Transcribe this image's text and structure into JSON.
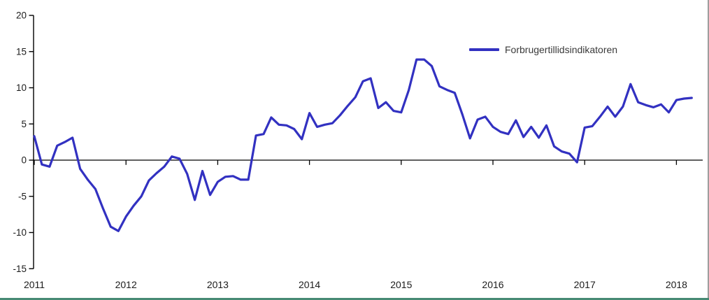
{
  "chart_data": {
    "type": "line",
    "title": "",
    "legend_position": "top-right",
    "grid": false,
    "x_tick_labels": [
      "2011",
      "2012",
      "2013",
      "2014",
      "2015",
      "2016",
      "2017",
      "2018"
    ],
    "y_ticks": [
      20,
      15,
      10,
      5,
      0,
      -5,
      -10,
      -15
    ],
    "ylim": [
      -15,
      20
    ],
    "x_unit": "month",
    "x_range": "2011-01 to 2018-03",
    "series": [
      {
        "name": "Forbrugertillidsindikatoren",
        "color": "#3231c1",
        "years": [
          {
            "year": "2011",
            "values": [
              3.3,
              -0.6,
              -0.9,
              2.0,
              2.5,
              3.1,
              -1.2,
              -2.7,
              -4.0,
              -6.7,
              -9.2,
              -9.8
            ]
          },
          {
            "year": "2012",
            "values": [
              -7.8,
              -6.3,
              -5.0,
              -2.8,
              -1.8,
              -0.9,
              0.5,
              0.2,
              -1.9,
              -5.5,
              -1.5,
              -4.8
            ]
          },
          {
            "year": "2013",
            "values": [
              -3.0,
              -2.3,
              -2.2,
              -2.7,
              -2.7,
              3.4,
              3.6,
              5.9,
              4.9,
              4.8,
              4.3,
              2.9
            ]
          },
          {
            "year": "2014",
            "values": [
              6.5,
              4.6,
              4.9,
              5.1,
              6.2,
              7.5,
              8.7,
              10.9,
              11.3,
              7.2,
              8.0,
              6.8
            ]
          },
          {
            "year": "2015",
            "values": [
              6.6,
              9.7,
              13.9,
              13.9,
              13.0,
              10.2,
              9.7,
              9.3,
              6.3,
              3.0,
              5.6,
              6.0
            ]
          },
          {
            "year": "2016",
            "values": [
              4.6,
              3.9,
              3.6,
              5.5,
              3.2,
              4.6,
              3.1,
              4.8,
              1.9,
              1.2,
              0.9,
              -0.3
            ]
          },
          {
            "year": "2017",
            "values": [
              4.5,
              4.7,
              6.0,
              7.4,
              6.0,
              7.4,
              10.5,
              8.0,
              7.6,
              7.3,
              7.7,
              6.6
            ]
          },
          {
            "year": "2018",
            "values": [
              8.3,
              8.5,
              8.6
            ]
          }
        ]
      }
    ]
  },
  "colors": {
    "line": "#3231c1",
    "axis": "#000000",
    "tick_text": "#1c1c1c",
    "legend_text": "#3a3a3a",
    "bottom_border": "#478a74",
    "right_border": "#9e9e9e",
    "background": "#ffffff"
  },
  "legend": {
    "label": "Forbrugertillidsindikatoren"
  }
}
